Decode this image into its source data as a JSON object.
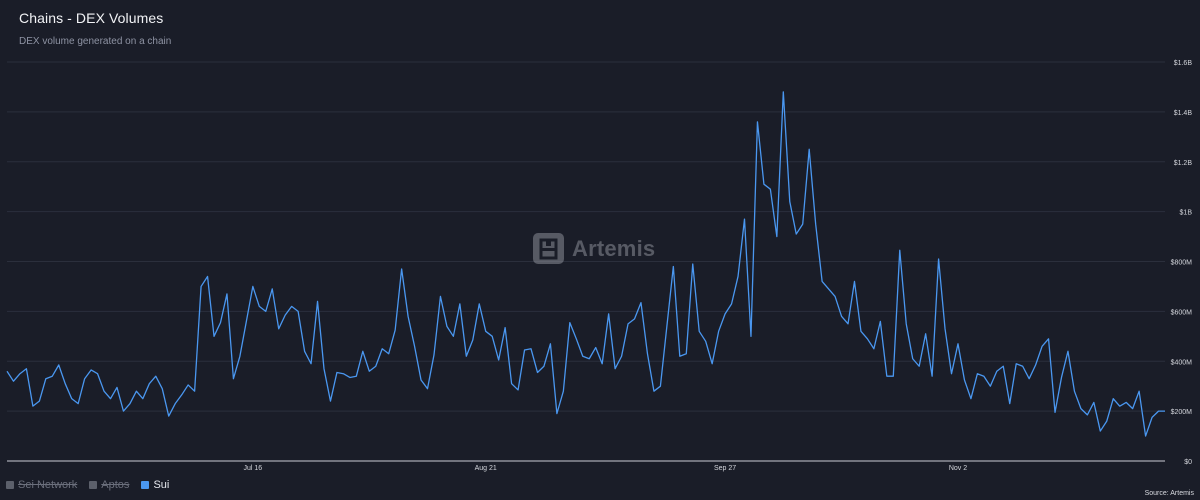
{
  "header": {
    "title": "Chains - DEX Volumes",
    "subtitle": "DEX volume generated on a chain"
  },
  "watermark": {
    "text": "Artemis",
    "icon": "artemis-logo-icon"
  },
  "legend": [
    {
      "label": "Sei Network",
      "active": false,
      "color": "#5c606b"
    },
    {
      "label": "Aptos",
      "active": false,
      "color": "#5c606b"
    },
    {
      "label": "Sui",
      "active": true,
      "color": "#4a97f0"
    }
  ],
  "source": "Source: Artemis",
  "colors": {
    "background": "#1a1d28",
    "line": "#4a97f0",
    "grid": "#2b2f3c"
  },
  "chart_data": {
    "type": "line",
    "title": "Chains - DEX Volumes",
    "subtitle": "DEX volume generated on a chain",
    "x_ticks": [
      {
        "label": "Jul 16",
        "index": 38
      },
      {
        "label": "Aug 21",
        "index": 74
      },
      {
        "label": "Sep 27",
        "index": 111
      },
      {
        "label": "Nov 2",
        "index": 147
      }
    ],
    "y_ticks": [
      "$0",
      "$200M",
      "$400M",
      "$600M",
      "$800M",
      "$1B",
      "$1.2B",
      "$1.4B",
      "$1.6B"
    ],
    "ylim": [
      0,
      1600
    ],
    "y_unit": "$M",
    "grid": true,
    "series": [
      {
        "name": "Sui",
        "color": "#4a97f0",
        "values": [
          360,
          320,
          350,
          370,
          220,
          240,
          330,
          340,
          385,
          310,
          250,
          230,
          330,
          365,
          350,
          280,
          250,
          295,
          200,
          230,
          280,
          250,
          310,
          340,
          290,
          180,
          230,
          265,
          305,
          280,
          700,
          740,
          500,
          555,
          670,
          330,
          420,
          560,
          700,
          620,
          600,
          690,
          530,
          585,
          620,
          600,
          440,
          390,
          640,
          370,
          240,
          355,
          350,
          335,
          340,
          440,
          360,
          380,
          450,
          430,
          525,
          770,
          580,
          460,
          325,
          290,
          425,
          660,
          540,
          500,
          630,
          420,
          485,
          630,
          520,
          500,
          405,
          535,
          310,
          285,
          445,
          450,
          355,
          380,
          470,
          190,
          280,
          555,
          490,
          420,
          410,
          455,
          390,
          590,
          370,
          420,
          550,
          570,
          635,
          430,
          280,
          300,
          540,
          780,
          420,
          430,
          790,
          520,
          480,
          390,
          520,
          590,
          630,
          740,
          970,
          500,
          1360,
          1110,
          1090,
          900,
          1480,
          1040,
          910,
          950,
          1250,
          950,
          720,
          690,
          660,
          580,
          550,
          720,
          520,
          490,
          450,
          560,
          340,
          340,
          845,
          550,
          410,
          380,
          510,
          340,
          810,
          530,
          350,
          470,
          325,
          250,
          350,
          340,
          300,
          360,
          380,
          230,
          390,
          380,
          330,
          385,
          460,
          490,
          195,
          335,
          440,
          280,
          210,
          185,
          235,
          120,
          160,
          250,
          220,
          235,
          210,
          280,
          100,
          175,
          200,
          200
        ]
      }
    ]
  }
}
